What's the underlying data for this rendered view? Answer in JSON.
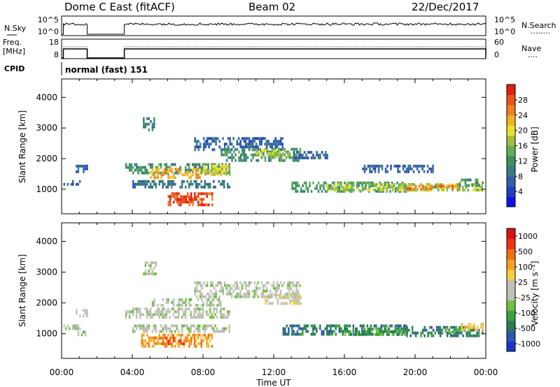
{
  "header": {
    "station": "Dome C East (fitACF)",
    "beam": "Beam 02",
    "date": "22/Dec/2017"
  },
  "strips": {
    "nsky": {
      "label": "N.Sky",
      "left_ticks": [
        "10^5",
        "10^0"
      ],
      "right_ticks": [
        "10^5",
        "10^0"
      ],
      "right_label": "N.Search",
      "right_legend": "........"
    },
    "freq": {
      "label_line1": "Freq.",
      "label_line2": "[MHz]",
      "left_ticks": [
        "18",
        "8"
      ],
      "right_ticks": [
        "60",
        "0"
      ],
      "right_label": "Nave",
      "right_legend": "....",
      "on_intervals": [
        [
          0.1,
          1.45
        ],
        [
          3.55,
          24.0
        ]
      ]
    },
    "cpid": {
      "label": "CPID",
      "value": "normal (fast) 151"
    }
  },
  "chart_data": [
    {
      "type": "heatmap",
      "name": "power",
      "ylabel": "Slant Range [km]",
      "xlabel": "",
      "xlim": [
        0,
        24
      ],
      "ylim": [
        200,
        4600
      ],
      "yticks": [
        "1000",
        "2000",
        "3000",
        "4000"
      ],
      "colorbar": {
        "label": "Power [dB]",
        "ticks": [
          "4",
          "8",
          "12",
          "16",
          "20",
          "24",
          "28"
        ],
        "colors": [
          "#1010f0",
          "#2040c0",
          "#3060a8",
          "#3a7a80",
          "#3f9060",
          "#60b050",
          "#a0c040",
          "#e8e030",
          "#f5b020",
          "#f08020",
          "#ee5020",
          "#e02010"
        ]
      },
      "patches": [
        {
          "t": [
            0.1,
            1.0
          ],
          "r": [
            1150,
            1300
          ],
          "v": 2
        },
        {
          "t": [
            0.8,
            1.4
          ],
          "r": [
            1600,
            1800
          ],
          "v": 2
        },
        {
          "t": [
            4.6,
            5.3
          ],
          "r": [
            2950,
            3350
          ],
          "v": 3
        },
        {
          "t": [
            3.6,
            9.5
          ],
          "r": [
            1550,
            1850
          ],
          "v": 4
        },
        {
          "t": [
            5.0,
            7.8
          ],
          "r": [
            1400,
            1700
          ],
          "v": 8
        },
        {
          "t": [
            8.0,
            9.5
          ],
          "r": [
            1500,
            1800
          ],
          "v": 7
        },
        {
          "t": [
            4.0,
            9.5
          ],
          "r": [
            1050,
            1300
          ],
          "v": 3
        },
        {
          "t": [
            6.0,
            8.5
          ],
          "r": [
            500,
            900
          ],
          "v": 10
        },
        {
          "t": [
            6.5,
            7.5
          ],
          "r": [
            650,
            800
          ],
          "v": 11
        },
        {
          "t": [
            7.5,
            12.5
          ],
          "r": [
            2300,
            2700
          ],
          "v": 2
        },
        {
          "t": [
            9.0,
            13.5
          ],
          "r": [
            1950,
            2350
          ],
          "v": 4
        },
        {
          "t": [
            11.0,
            13.0
          ],
          "r": [
            2050,
            2300
          ],
          "v": 6
        },
        {
          "t": [
            13.0,
            15.0
          ],
          "r": [
            2000,
            2250
          ],
          "v": 2
        },
        {
          "t": [
            13.0,
            19.5
          ],
          "r": [
            950,
            1250
          ],
          "v": 4
        },
        {
          "t": [
            15.0,
            18.5
          ],
          "r": [
            1000,
            1200
          ],
          "v": 6
        },
        {
          "t": [
            18.0,
            23.8
          ],
          "r": [
            950,
            1200
          ],
          "v": 6
        },
        {
          "t": [
            19.5,
            22.5
          ],
          "r": [
            1000,
            1150
          ],
          "v": 9
        },
        {
          "t": [
            17.0,
            21.0
          ],
          "r": [
            1600,
            1800
          ],
          "v": 2
        },
        {
          "t": [
            22.5,
            23.8
          ],
          "r": [
            1150,
            1350
          ],
          "v": 4
        }
      ]
    },
    {
      "type": "heatmap",
      "name": "velocity",
      "ylabel": "Slant Range [km]",
      "xlabel": "Time UT",
      "xlim": [
        0,
        24
      ],
      "ylim": [
        200,
        4600
      ],
      "xticks": [
        "00:00",
        "04:00",
        "08:00",
        "12:00",
        "16:00",
        "20:00",
        "00:00"
      ],
      "yticks": [
        "1000",
        "2000",
        "3000",
        "4000"
      ],
      "colorbar": {
        "label": "Velocity [m s⁻¹]",
        "ticks": [
          "1000",
          "500",
          "100",
          "25",
          "-25",
          "-100",
          "-500",
          "-1000"
        ],
        "colors": [
          "#1a35c8",
          "#2a5ab0",
          "#2a7a55",
          "#3aa040",
          "#70c040",
          "#c0c0b8",
          "#c0c0b8",
          "#f0d040",
          "#f8a020",
          "#f07010",
          "#f03010",
          "#e01010"
        ]
      },
      "patches": [
        {
          "t": [
            0.1,
            1.0
          ],
          "r": [
            1150,
            1300
          ],
          "v": 5
        },
        {
          "t": [
            0.8,
            1.4
          ],
          "r": [
            1600,
            1800
          ],
          "v": 5
        },
        {
          "t": [
            0.9,
            1.3
          ],
          "r": [
            1000,
            1100
          ],
          "v": 4
        },
        {
          "t": [
            4.6,
            5.3
          ],
          "r": [
            2950,
            3350
          ],
          "v": 5
        },
        {
          "t": [
            3.6,
            9.5
          ],
          "r": [
            1550,
            1850
          ],
          "v": 5
        },
        {
          "t": [
            5.0,
            9.0
          ],
          "r": [
            1950,
            2150
          ],
          "v": 5
        },
        {
          "t": [
            4.0,
            9.5
          ],
          "r": [
            1050,
            1300
          ],
          "v": 5
        },
        {
          "t": [
            4.5,
            8.5
          ],
          "r": [
            550,
            1000
          ],
          "v": 8
        },
        {
          "t": [
            5.5,
            7.5
          ],
          "r": [
            650,
            900
          ],
          "v": 9
        },
        {
          "t": [
            7.5,
            13.5
          ],
          "r": [
            2200,
            2700
          ],
          "v": 5
        },
        {
          "t": [
            11.5,
            13.5
          ],
          "r": [
            1950,
            2300
          ],
          "v": 6
        },
        {
          "t": [
            12.5,
            19.5
          ],
          "r": [
            950,
            1300
          ],
          "v": 2
        },
        {
          "t": [
            16.0,
            19.5
          ],
          "r": [
            1000,
            1200
          ],
          "v": 3
        },
        {
          "t": [
            19.5,
            23.8
          ],
          "r": [
            950,
            1250
          ],
          "v": 2
        },
        {
          "t": [
            21.5,
            23.0
          ],
          "r": [
            1050,
            1200
          ],
          "v": 4
        },
        {
          "t": [
            22.5,
            23.8
          ],
          "r": [
            1150,
            1350
          ],
          "v": 7
        }
      ]
    }
  ]
}
